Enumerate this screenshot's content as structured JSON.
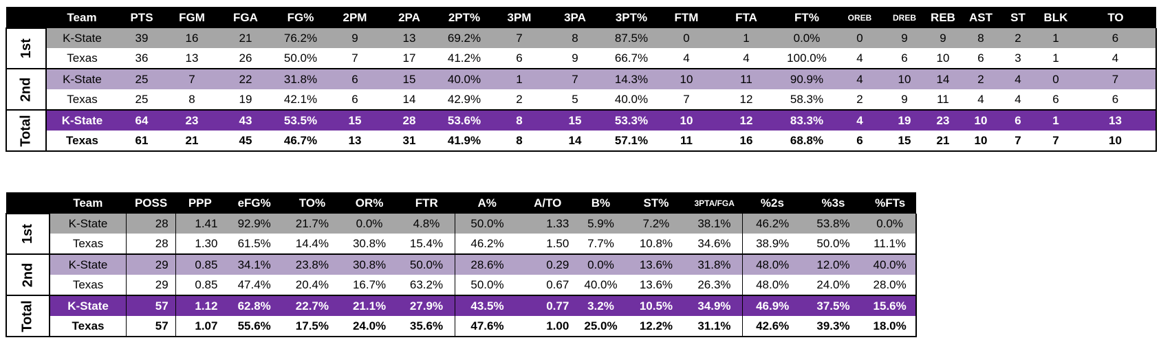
{
  "box": {
    "headers": [
      "Team",
      "PTS",
      "FGM",
      "FGA",
      "FG%",
      "2PM",
      "2PA",
      "2PT%",
      "3PM",
      "3PA",
      "3PT%",
      "FTM",
      "FTA",
      "FT%",
      "OREB",
      "DREB",
      "REB",
      "AST",
      "ST",
      "BLK",
      "TO"
    ],
    "groups": [
      {
        "label": "1st",
        "rows": [
          [
            "K-State",
            "39",
            "16",
            "21",
            "76.2%",
            "9",
            "13",
            "69.2%",
            "7",
            "8",
            "87.5%",
            "0",
            "1",
            "0.0%",
            "0",
            "9",
            "9",
            "8",
            "2",
            "1",
            "6"
          ],
          [
            "Texas",
            "36",
            "13",
            "26",
            "50.0%",
            "7",
            "17",
            "41.2%",
            "6",
            "9",
            "66.7%",
            "4",
            "4",
            "100.0%",
            "4",
            "6",
            "10",
            "6",
            "3",
            "1",
            "4"
          ]
        ]
      },
      {
        "label": "2nd",
        "rows": [
          [
            "K-State",
            "25",
            "7",
            "22",
            "31.8%",
            "6",
            "15",
            "40.0%",
            "1",
            "7",
            "14.3%",
            "10",
            "11",
            "90.9%",
            "4",
            "10",
            "14",
            "2",
            "4",
            "0",
            "7"
          ],
          [
            "Texas",
            "25",
            "8",
            "19",
            "42.1%",
            "6",
            "14",
            "42.9%",
            "2",
            "5",
            "40.0%",
            "7",
            "12",
            "58.3%",
            "2",
            "9",
            "11",
            "4",
            "4",
            "6",
            "6"
          ]
        ]
      },
      {
        "label": "Total",
        "rows": [
          [
            "K-State",
            "64",
            "23",
            "43",
            "53.5%",
            "15",
            "28",
            "53.6%",
            "8",
            "15",
            "53.3%",
            "10",
            "12",
            "83.3%",
            "4",
            "19",
            "23",
            "10",
            "6",
            "1",
            "13"
          ],
          [
            "Texas",
            "61",
            "21",
            "45",
            "46.7%",
            "13",
            "31",
            "41.9%",
            "8",
            "14",
            "57.1%",
            "11",
            "16",
            "68.8%",
            "6",
            "15",
            "21",
            "10",
            "7",
            "7",
            "10"
          ]
        ]
      }
    ]
  },
  "advanced": {
    "headers": [
      "Team",
      "POSS",
      "PPP",
      "eFG%",
      "TO%",
      "OR%",
      "FTR",
      "A%",
      "A/TO",
      "B%",
      "ST%",
      "3PTA/FGA",
      "%2s",
      "%3s",
      "%FTs"
    ],
    "groups": [
      {
        "label": "1st",
        "rows": [
          [
            "K-State",
            "28",
            "1.41",
            "92.9%",
            "21.7%",
            "0.0%",
            "4.8%",
            "50.0%",
            "1.33",
            "5.9%",
            "7.2%",
            "38.1%",
            "46.2%",
            "53.8%",
            "0.0%"
          ],
          [
            "Texas",
            "28",
            "1.30",
            "61.5%",
            "14.4%",
            "30.8%",
            "15.4%",
            "46.2%",
            "1.50",
            "7.7%",
            "10.8%",
            "34.6%",
            "38.9%",
            "50.0%",
            "11.1%"
          ]
        ]
      },
      {
        "label": "2nd",
        "rows": [
          [
            "K-State",
            "29",
            "0.85",
            "34.1%",
            "23.8%",
            "30.8%",
            "50.0%",
            "28.6%",
            "0.29",
            "0.0%",
            "13.6%",
            "31.8%",
            "48.0%",
            "12.0%",
            "40.0%"
          ],
          [
            "Texas",
            "29",
            "0.85",
            "47.4%",
            "20.4%",
            "16.7%",
            "63.2%",
            "50.0%",
            "0.67",
            "40.0%",
            "13.6%",
            "26.3%",
            "48.0%",
            "24.0%",
            "28.0%"
          ]
        ]
      },
      {
        "label": "Total",
        "rows": [
          [
            "K-State",
            "57",
            "1.12",
            "62.8%",
            "22.7%",
            "21.1%",
            "27.9%",
            "43.5%",
            "0.77",
            "3.2%",
            "10.5%",
            "34.9%",
            "46.9%",
            "37.5%",
            "15.6%"
          ],
          [
            "Texas",
            "57",
            "1.07",
            "55.6%",
            "17.5%",
            "24.0%",
            "35.6%",
            "47.6%",
            "1.00",
            "25.0%",
            "12.2%",
            "31.1%",
            "42.6%",
            "39.3%",
            "18.0%"
          ]
        ]
      }
    ]
  },
  "colors": {
    "header": "#000000",
    "row_first_kstate": "#a6a6a6",
    "row_second_kstate": "#b3a2c7",
    "row_total_kstate": "#7030a0",
    "row_plain": "#ffffff"
  }
}
